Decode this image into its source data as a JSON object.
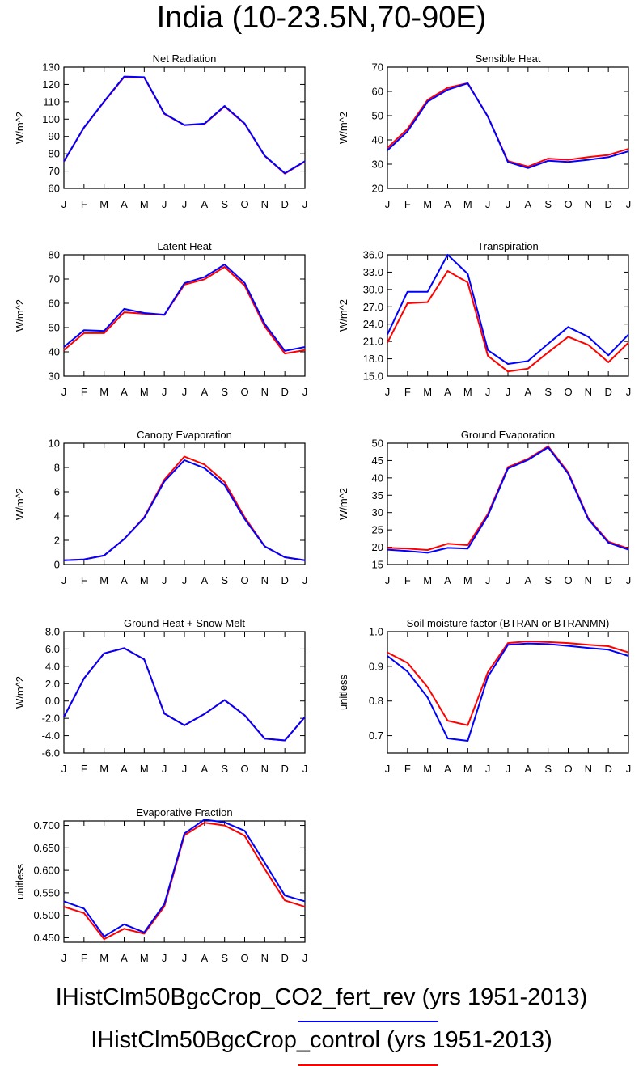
{
  "title": "India (10-23.5N,70-90E)",
  "colors": {
    "series_a": "#0000ff",
    "series_b": "#ff0000"
  },
  "legend": [
    {
      "label": "IHistClm50BgcCrop_CO2_fert_rev (yrs 1951-2013)",
      "color": "#0000ff"
    },
    {
      "label": "IHistClm50BgcCrop_control (yrs 1951-2013)",
      "color": "#ff0000"
    }
  ],
  "chart_data": [
    {
      "type": "line",
      "title": "Net Radiation",
      "ylabel": "W/m^2",
      "categories": [
        "J",
        "F",
        "M",
        "A",
        "M",
        "J",
        "J",
        "A",
        "S",
        "O",
        "N",
        "D",
        "J"
      ],
      "ylim": [
        60,
        130
      ],
      "yticks": [
        "60",
        "70",
        "80",
        "90",
        "100",
        "110",
        "120",
        "130"
      ],
      "grid": false,
      "series": [
        {
          "color": "#ff0000",
          "values": [
            75.5,
            95,
            110,
            124.3,
            124,
            103,
            96.5,
            97.2,
            107.3,
            97.3,
            78.7,
            68.6,
            75.5
          ]
        },
        {
          "color": "#0000ff",
          "values": [
            75.7,
            95.2,
            110.2,
            124.6,
            124.2,
            103.2,
            96.6,
            97.4,
            107.6,
            97.5,
            78.9,
            68.8,
            75.7
          ]
        }
      ]
    },
    {
      "type": "line",
      "title": "Sensible Heat",
      "ylabel": "W/m^2",
      "categories": [
        "J",
        "F",
        "M",
        "A",
        "M",
        "J",
        "J",
        "A",
        "S",
        "O",
        "N",
        "D",
        "J"
      ],
      "ylim": [
        20,
        70
      ],
      "yticks": [
        "20",
        "30",
        "40",
        "50",
        "60",
        "70"
      ],
      "grid": false,
      "series": [
        {
          "color": "#ff0000",
          "values": [
            36.7,
            44.5,
            56.5,
            61.5,
            63.4,
            49.6,
            31.3,
            29,
            32.3,
            31.8,
            32.9,
            33.8,
            36.3
          ]
        },
        {
          "color": "#0000ff",
          "values": [
            35.7,
            43.5,
            55.8,
            60.7,
            63.3,
            49.6,
            30.9,
            28.4,
            31.4,
            30.9,
            31.8,
            32.9,
            35.3
          ]
        }
      ]
    },
    {
      "type": "line",
      "title": "Latent Heat",
      "ylabel": "W/m^2",
      "categories": [
        "J",
        "F",
        "M",
        "A",
        "M",
        "J",
        "J",
        "A",
        "S",
        "O",
        "N",
        "D",
        "J"
      ],
      "ylim": [
        30,
        80
      ],
      "yticks": [
        "30",
        "40",
        "50",
        "60",
        "70",
        "80"
      ],
      "grid": false,
      "series": [
        {
          "color": "#ff0000",
          "values": [
            40.7,
            47.7,
            47.7,
            56.3,
            55.7,
            55.2,
            67.7,
            69.9,
            75,
            67.3,
            50.5,
            39.3,
            40.7
          ]
        },
        {
          "color": "#0000ff",
          "values": [
            42,
            48.9,
            48.6,
            57.7,
            56,
            55.3,
            68.3,
            70.8,
            76,
            68.4,
            51.5,
            40.4,
            42
          ]
        }
      ]
    },
    {
      "type": "line",
      "title": "Transpiration",
      "ylabel": "W/m^2",
      "categories": [
        "J",
        "F",
        "M",
        "A",
        "M",
        "J",
        "J",
        "A",
        "S",
        "O",
        "N",
        "D",
        "J"
      ],
      "ylim": [
        15,
        36
      ],
      "yticks": [
        "15.0",
        "18.0",
        "21.0",
        "24.0",
        "27.0",
        "30.0",
        "33.0",
        "36.0"
      ],
      "grid": false,
      "series": [
        {
          "color": "#ff0000",
          "values": [
            20.8,
            27.6,
            27.8,
            33.2,
            31.2,
            18.5,
            15.8,
            16.3,
            19.1,
            21.8,
            20.4,
            17.4,
            20.8
          ]
        },
        {
          "color": "#0000ff",
          "values": [
            22.2,
            29.6,
            29.6,
            36,
            32.7,
            19.5,
            17.1,
            17.6,
            20.6,
            23.5,
            21.8,
            18.6,
            22.2
          ]
        }
      ]
    },
    {
      "type": "line",
      "title": "Canopy Evaporation",
      "ylabel": "W/m^2",
      "categories": [
        "J",
        "F",
        "M",
        "A",
        "M",
        "J",
        "J",
        "A",
        "S",
        "O",
        "N",
        "D",
        "J"
      ],
      "ylim": [
        0,
        10
      ],
      "yticks": [
        "0",
        "2",
        "4",
        "6",
        "8",
        "10"
      ],
      "grid": false,
      "series": [
        {
          "color": "#ff0000",
          "values": [
            0.35,
            0.42,
            0.75,
            2.1,
            3.9,
            7.0,
            8.9,
            8.25,
            6.8,
            3.9,
            1.5,
            0.6,
            0.35
          ]
        },
        {
          "color": "#0000ff",
          "values": [
            0.35,
            0.42,
            0.75,
            2.1,
            3.85,
            6.85,
            8.6,
            7.95,
            6.55,
            3.75,
            1.5,
            0.6,
            0.35
          ]
        }
      ]
    },
    {
      "type": "line",
      "title": "Ground Evaporation",
      "ylabel": "W/m^2",
      "categories": [
        "J",
        "F",
        "M",
        "A",
        "M",
        "J",
        "J",
        "A",
        "S",
        "O",
        "N",
        "D",
        "J"
      ],
      "ylim": [
        15,
        50
      ],
      "yticks": [
        "15",
        "20",
        "25",
        "30",
        "35",
        "40",
        "45",
        "50"
      ],
      "grid": false,
      "series": [
        {
          "color": "#ff0000",
          "values": [
            19.8,
            19.6,
            19.2,
            21,
            20.6,
            29.6,
            43.1,
            45.5,
            49.1,
            41.6,
            28.4,
            21.6,
            19.6
          ]
        },
        {
          "color": "#0000ff",
          "values": [
            19.3,
            18.9,
            18.4,
            19.8,
            19.6,
            29.1,
            42.7,
            45.2,
            48.8,
            41.2,
            28.1,
            21.3,
            19.3
          ]
        }
      ]
    },
    {
      "type": "line",
      "title": "Ground Heat + Snow Melt",
      "ylabel": "W/m^2",
      "categories": [
        "J",
        "F",
        "M",
        "A",
        "M",
        "J",
        "J",
        "A",
        "S",
        "O",
        "N",
        "D",
        "J"
      ],
      "ylim": [
        -6,
        8
      ],
      "yticks": [
        "-6.0",
        "-4.0",
        "-2.0",
        "0.0",
        "2.0",
        "4.0",
        "6.0",
        "8.0"
      ],
      "grid": false,
      "series": [
        {
          "color": "#ff0000",
          "values": [
            -1.85,
            2.6,
            5.5,
            6.1,
            4.8,
            -1.45,
            -2.8,
            -1.5,
            0.1,
            -1.65,
            -4.35,
            -4.55,
            -1.85
          ]
        },
        {
          "color": "#0000ff",
          "values": [
            -1.85,
            2.6,
            5.5,
            6.1,
            4.8,
            -1.45,
            -2.8,
            -1.5,
            0.1,
            -1.65,
            -4.35,
            -4.55,
            -1.85
          ]
        }
      ]
    },
    {
      "type": "line",
      "title": "Soil moisture factor (BTRAN or BTRANMN)",
      "ylabel": "unitless",
      "categories": [
        "J",
        "F",
        "M",
        "A",
        "M",
        "J",
        "J",
        "A",
        "S",
        "O",
        "N",
        "D",
        "J"
      ],
      "ylim": [
        0.65,
        1.0
      ],
      "yticks": [
        "0.7",
        "0.8",
        "0.9",
        "1.0"
      ],
      "grid": false,
      "series": [
        {
          "color": "#ff0000",
          "values": [
            0.94,
            0.91,
            0.84,
            0.743,
            0.73,
            0.883,
            0.967,
            0.972,
            0.97,
            0.967,
            0.962,
            0.958,
            0.94
          ]
        },
        {
          "color": "#0000ff",
          "values": [
            0.93,
            0.885,
            0.81,
            0.692,
            0.685,
            0.87,
            0.962,
            0.966,
            0.964,
            0.959,
            0.953,
            0.948,
            0.93
          ]
        }
      ]
    },
    {
      "type": "line",
      "title": "Evaporative Fraction",
      "ylabel": "unitless",
      "categories": [
        "J",
        "F",
        "M",
        "A",
        "M",
        "J",
        "J",
        "A",
        "S",
        "O",
        "N",
        "D",
        "J"
      ],
      "ylim": [
        0.44,
        0.71
      ],
      "yticks": [
        "0.450",
        "0.500",
        "0.550",
        "0.600",
        "0.650",
        "0.700"
      ],
      "grid": false,
      "series": [
        {
          "color": "#ff0000",
          "values": [
            0.519,
            0.505,
            0.447,
            0.47,
            0.459,
            0.52,
            0.678,
            0.706,
            0.7,
            0.677,
            0.603,
            0.533,
            0.519
          ]
        },
        {
          "color": "#0000ff",
          "values": [
            0.531,
            0.515,
            0.453,
            0.48,
            0.462,
            0.525,
            0.682,
            0.713,
            0.707,
            0.688,
            0.617,
            0.544,
            0.531
          ]
        }
      ]
    }
  ]
}
